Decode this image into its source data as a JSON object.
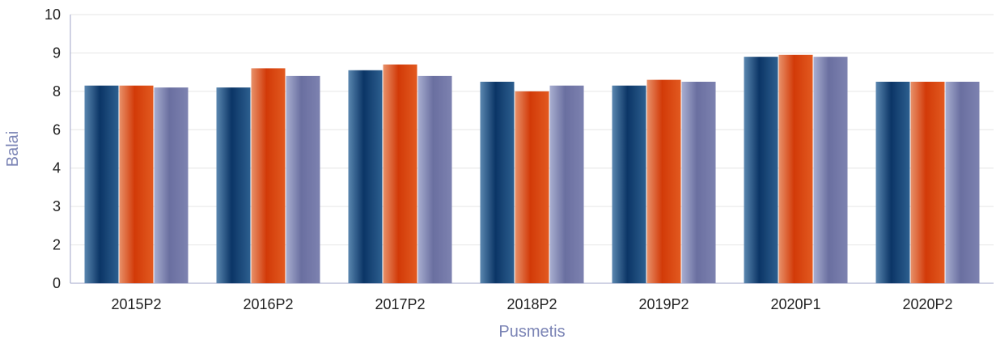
{
  "chart_data": {
    "type": "bar",
    "title": "",
    "xlabel": "Pusmetis",
    "ylabel": "Balai",
    "categories": [
      "2015P2",
      "2016P2",
      "2017P2",
      "2018P2",
      "2019P2",
      "2020P1",
      "2020P2"
    ],
    "y_ticks": [
      "0",
      "2",
      "3",
      "4",
      "6",
      "8",
      "9",
      "10"
    ],
    "y_tick_values": [
      0,
      2,
      3,
      4,
      6,
      8,
      9,
      10
    ],
    "ylim": [
      0,
      10
    ],
    "grid": "horizontal",
    "legend": "none",
    "series": [
      {
        "values": [
          8.15,
          8.1,
          8.55,
          8.25,
          8.15,
          8.9,
          8.25
        ]
      },
      {
        "values": [
          8.15,
          8.6,
          8.7,
          8.0,
          8.3,
          8.95,
          8.25
        ]
      },
      {
        "values": [
          8.1,
          8.4,
          8.4,
          8.15,
          8.25,
          8.9,
          8.25
        ]
      }
    ],
    "colors": {
      "series_dark": [
        "#5a87b0",
        "#0b3566",
        "#2d5f8f"
      ],
      "series_orange": [
        "#e8916a",
        "#d23a08",
        "#e25a20"
      ],
      "series_lavender": [
        "#a8aed0",
        "#6a6fa0",
        "#7d82b0"
      ],
      "grid": "#e6e6e6",
      "axis": "#a0a6c8",
      "axis_title": "#7b84b5"
    }
  }
}
